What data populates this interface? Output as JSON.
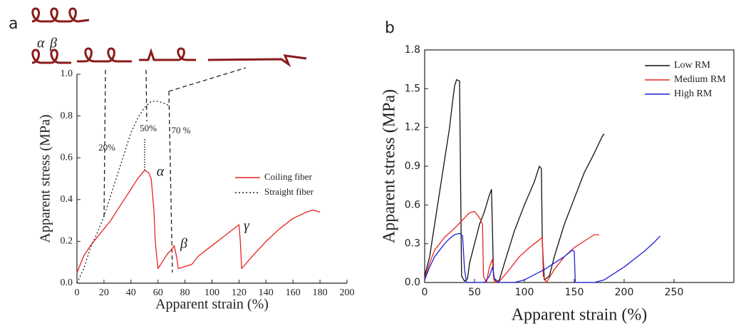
{
  "panel_labels": [
    "a",
    "b"
  ],
  "illustration_labels": [
    "α",
    "β"
  ],
  "chart_data": [
    {
      "type": "line",
      "xlabel": "Apparent strain (%)",
      "ylabel": "Apparent stress (MPa)",
      "xlim": [
        0,
        200
      ],
      "ylim": [
        0,
        1.0
      ],
      "xticks": [
        0,
        20,
        40,
        60,
        80,
        100,
        120,
        140,
        160,
        180,
        200
      ],
      "yticks": [
        {
          "value": 0,
          "label": "0.0"
        },
        0.2,
        0.4,
        0.6,
        0.8,
        {
          "value": 1.0,
          "label": "1.0"
        }
      ],
      "legend": "center-right",
      "annotations": [
        "20%",
        "50%",
        "70 %",
        "α",
        "β",
        "γ"
      ],
      "series": [
        {
          "name": "Coiling fiber",
          "color": "#e8231f",
          "line_style": "solid",
          "x": [
            0,
            5,
            10,
            15,
            20,
            25,
            30,
            35,
            40,
            45,
            50,
            53,
            55,
            57,
            58,
            60,
            63,
            67,
            70,
            72,
            74,
            75,
            80,
            85,
            90,
            100,
            110,
            120,
            121,
            122,
            130,
            140,
            150,
            160,
            170,
            175,
            180
          ],
          "values": [
            0.05,
            0.13,
            0.18,
            0.22,
            0.26,
            0.3,
            0.35,
            0.4,
            0.45,
            0.5,
            0.54,
            0.53,
            0.5,
            0.35,
            0.2,
            0.07,
            0.1,
            0.14,
            0.16,
            0.18,
            0.12,
            0.07,
            0.08,
            0.09,
            0.13,
            0.18,
            0.23,
            0.28,
            0.2,
            0.07,
            0.13,
            0.2,
            0.26,
            0.31,
            0.34,
            0.35,
            0.34
          ]
        },
        {
          "name": "Straight fiber",
          "color": "#222222",
          "line_style": "dotted",
          "x": [
            0,
            5,
            10,
            15,
            20,
            25,
            30,
            35,
            40,
            45,
            50,
            55,
            60,
            65,
            68
          ],
          "values": [
            0,
            0.07,
            0.17,
            0.24,
            0.32,
            0.42,
            0.52,
            0.62,
            0.72,
            0.79,
            0.84,
            0.87,
            0.87,
            0.86,
            0.85
          ]
        }
      ]
    },
    {
      "type": "line",
      "xlabel": "Apparent strain (%)",
      "ylabel": "Apparent stress (MPa)",
      "xlim": [
        0,
        310
      ],
      "ylim": [
        0,
        1.8
      ],
      "xticks": [
        0,
        50,
        100,
        150,
        200,
        250
      ],
      "yticks": [
        {
          "value": 0,
          "label": "0.0"
        },
        0.3,
        0.6,
        0.9,
        1.2,
        1.5,
        1.8
      ],
      "legend": "upper-right",
      "frame": true,
      "series": [
        {
          "name": "Low RM",
          "color": "#111111",
          "line_style": "solid",
          "x": [
            0,
            5,
            10,
            15,
            20,
            25,
            28,
            30,
            32,
            35,
            36,
            37,
            40,
            43,
            45,
            50,
            55,
            60,
            65,
            67,
            68,
            69,
            72,
            75,
            80,
            90,
            100,
            110,
            115,
            117,
            118,
            120,
            125,
            130,
            140,
            150,
            160,
            170,
            178,
            180
          ],
          "values": [
            0.05,
            0.2,
            0.45,
            0.7,
            0.95,
            1.2,
            1.4,
            1.52,
            1.57,
            1.56,
            0.8,
            0.05,
            0.01,
            0.03,
            0.15,
            0.3,
            0.45,
            0.55,
            0.68,
            0.72,
            0.4,
            0.05,
            0,
            0.02,
            0.15,
            0.4,
            0.6,
            0.78,
            0.9,
            0.88,
            0.3,
            0.02,
            0.05,
            0.2,
            0.45,
            0.65,
            0.85,
            1.0,
            1.13,
            1.15
          ]
        },
        {
          "name": "Medium RM",
          "color": "#e8231f",
          "line_style": "solid",
          "x": [
            0,
            5,
            10,
            20,
            30,
            40,
            45,
            50,
            55,
            58,
            59,
            62,
            65,
            68,
            69,
            70,
            75,
            85,
            95,
            105,
            115,
            118,
            119,
            122,
            130,
            140,
            150,
            160,
            170,
            175
          ],
          "values": [
            0.03,
            0.15,
            0.25,
            0.35,
            0.42,
            0.5,
            0.54,
            0.55,
            0.5,
            0.45,
            0.05,
            0,
            0.12,
            0.18,
            0.05,
            0,
            0.01,
            0.1,
            0.2,
            0.27,
            0.33,
            0.35,
            0.05,
            0,
            0.1,
            0.2,
            0.27,
            0.32,
            0.37,
            0.37
          ]
        },
        {
          "name": "High RM",
          "color": "#1f1fd8",
          "line_style": "solid",
          "x": [
            0,
            5,
            10,
            15,
            20,
            25,
            30,
            35,
            38,
            40,
            42,
            60,
            65,
            68,
            70,
            75,
            90,
            100,
            110,
            120,
            130,
            140,
            148,
            150,
            151,
            170,
            180,
            190,
            200,
            210,
            220,
            230,
            236
          ],
          "values": [
            0.02,
            0.12,
            0.2,
            0.25,
            0.3,
            0.34,
            0.37,
            0.38,
            0.36,
            0.1,
            0,
            0,
            0.05,
            0.12,
            0.03,
            0,
            0,
            0.02,
            0.06,
            0.1,
            0.15,
            0.2,
            0.25,
            0.24,
            0,
            0,
            0.02,
            0.07,
            0.12,
            0.18,
            0.24,
            0.31,
            0.36
          ]
        }
      ]
    }
  ]
}
